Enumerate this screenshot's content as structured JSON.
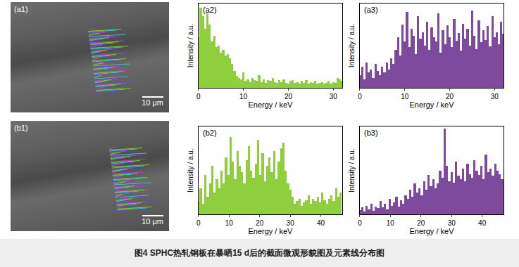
{
  "figure": {
    "caption": "图4   SPHC热轧钢板在暴晒15 d后的截面微观形貌图及元素线分布图",
    "images": [
      {
        "label": "(a1)",
        "scale_bar": "10 μm"
      },
      {
        "label": "(b1)",
        "scale_bar": "10 μm"
      }
    ]
  },
  "chart_data": [
    {
      "type": "bar",
      "title": "(a2)",
      "x_label": "Energy / keV",
      "y_label": "Intensity / a.u.",
      "color": "#8fce3c",
      "x": [
        0,
        0.5,
        1,
        1.5,
        2,
        2.5,
        3,
        3.5,
        4,
        4.5,
        5,
        5.5,
        6,
        6.5,
        7,
        7.5,
        8,
        8.5,
        9,
        9.5,
        10,
        10.5,
        11,
        11.5,
        12,
        12.5,
        13,
        13.5,
        14,
        14.5,
        15,
        15.5,
        16,
        16.5,
        17,
        17.5,
        18,
        18.5,
        19,
        19.5,
        20,
        20.5,
        21,
        21.5,
        22,
        22.5,
        23,
        23.5,
        24,
        24.5,
        25,
        25.5,
        26,
        26.5,
        27,
        27.5,
        28,
        28.5,
        29,
        29.5,
        30,
        30.5,
        31,
        31.5,
        32
      ],
      "values": [
        60,
        95,
        85,
        70,
        88,
        75,
        55,
        62,
        48,
        50,
        42,
        45,
        38,
        40,
        35,
        28,
        20,
        14,
        12,
        10,
        18,
        8,
        10,
        7,
        12,
        9,
        8,
        15,
        7,
        10,
        6,
        9,
        8,
        12,
        7,
        6,
        9,
        7,
        10,
        6,
        5,
        8,
        9,
        6,
        7,
        5,
        8,
        6,
        9,
        5,
        7,
        6,
        8,
        5,
        6,
        7,
        5,
        6,
        8,
        5,
        7,
        6,
        12,
        10,
        8
      ],
      "xlim": [
        0,
        32
      ],
      "xticks": [
        0,
        10,
        20,
        30
      ],
      "ylim": [
        0,
        100
      ],
      "tick_labels": "x"
    },
    {
      "type": "bar",
      "title": "(a3)",
      "x_label": "Energy / keV",
      "y_label": "Intensity / a.u.",
      "color": "#7e4a9e",
      "x": [
        0,
        0.5,
        1,
        1.5,
        2,
        2.5,
        3,
        3.5,
        4,
        4.5,
        5,
        5.5,
        6,
        6.5,
        7,
        7.5,
        8,
        8.5,
        9,
        9.5,
        10,
        10.5,
        11,
        11.5,
        12,
        12.5,
        13,
        13.5,
        14,
        14.5,
        15,
        15.5,
        16,
        16.5,
        17,
        17.5,
        18,
        18.5,
        19,
        19.5,
        20,
        20.5,
        21,
        21.5,
        22,
        22.5,
        23,
        23.5,
        24,
        24.5,
        25,
        25.5,
        26,
        26.5,
        27,
        27.5,
        28,
        28.5,
        29,
        29.5,
        30,
        30.5,
        31,
        31.5,
        32
      ],
      "values": [
        15,
        25,
        10,
        30,
        18,
        22,
        12,
        28,
        20,
        15,
        25,
        18,
        30,
        22,
        35,
        28,
        45,
        60,
        38,
        75,
        55,
        90,
        48,
        70,
        62,
        40,
        85,
        58,
        66,
        50,
        78,
        45,
        72,
        60,
        55,
        88,
        42,
        68,
        52,
        74,
        60,
        48,
        82,
        56,
        65,
        44,
        76,
        58,
        70,
        50,
        92,
        62,
        46,
        80,
        54,
        68,
        57,
        73,
        49,
        85,
        60,
        66,
        52,
        78,
        64
      ],
      "xlim": [
        0,
        32
      ],
      "xticks": [
        0,
        10,
        20,
        30
      ],
      "ylim": [
        0,
        100
      ],
      "tick_labels": "x"
    },
    {
      "type": "bar",
      "title": "(b2)",
      "x_label": "Energy / keV",
      "y_label": "Intensity / a.u.",
      "color": "#8fce3c",
      "x": [
        0,
        0.75,
        1.5,
        2.25,
        3,
        3.75,
        4.5,
        5.25,
        6,
        6.75,
        7.5,
        8.25,
        9,
        9.75,
        10.5,
        11.25,
        12,
        12.75,
        13.5,
        14.25,
        15,
        15.75,
        16.5,
        17.25,
        18,
        18.75,
        19.5,
        20.25,
        21,
        21.75,
        22.5,
        23.25,
        24,
        24.75,
        25.5,
        26.25,
        27,
        27.75,
        28.5,
        29.25,
        30,
        30.75,
        31.5,
        32.25,
        33,
        33.75,
        34.5,
        35.25,
        36,
        36.75,
        37.5,
        38.25,
        39,
        39.75,
        40.5,
        41.25,
        42,
        42.75,
        43.5,
        44.25,
        45,
        45.75,
        46.5
      ],
      "values": [
        15,
        30,
        12,
        45,
        20,
        35,
        55,
        25,
        40,
        30,
        50,
        35,
        65,
        45,
        88,
        60,
        40,
        72,
        55,
        48,
        35,
        62,
        78,
        50,
        42,
        58,
        85,
        45,
        70,
        38,
        55,
        65,
        48,
        72,
        40,
        60,
        75,
        82,
        50,
        35,
        28,
        20,
        12,
        15,
        18,
        10,
        14,
        16,
        22,
        12,
        18,
        15,
        20,
        14,
        25,
        16,
        12,
        18,
        22,
        15,
        30,
        20,
        25
      ],
      "xlim": [
        0,
        47
      ],
      "xticks": [
        0,
        10,
        20,
        30,
        40
      ],
      "ylim": [
        0,
        100
      ],
      "tick_labels": "x"
    },
    {
      "type": "bar",
      "title": "(b3)",
      "x_label": "Energy / keV",
      "y_label": "Intensity / a.u.",
      "color": "#7e4a9e",
      "x": [
        0,
        0.75,
        1.5,
        2.25,
        3,
        3.75,
        4.5,
        5.25,
        6,
        6.75,
        7.5,
        8.25,
        9,
        9.75,
        10.5,
        11.25,
        12,
        12.75,
        13.5,
        14.25,
        15,
        15.75,
        16.5,
        17.25,
        18,
        18.75,
        19.5,
        20.25,
        21,
        21.75,
        22.5,
        23.25,
        24,
        24.75,
        25.5,
        26.25,
        27,
        27.75,
        28.5,
        29.25,
        30,
        30.75,
        31.5,
        32.25,
        33,
        33.75,
        34.5,
        35.25,
        36,
        36.75,
        37.5,
        38.25,
        39,
        39.75,
        40.5,
        41.25,
        42,
        42.75,
        43.5,
        44.25,
        45,
        45.75,
        46.5
      ],
      "values": [
        5,
        8,
        3,
        10,
        6,
        12,
        4,
        9,
        7,
        15,
        8,
        12,
        6,
        18,
        10,
        14,
        20,
        9,
        16,
        12,
        22,
        18,
        28,
        20,
        35,
        25,
        30,
        22,
        38,
        28,
        45,
        32,
        40,
        30,
        35,
        50,
        42,
        98,
        55,
        38,
        48,
        36,
        60,
        44,
        40,
        52,
        38,
        58,
        46,
        42,
        62,
        50,
        45,
        55,
        40,
        68,
        48,
        52,
        44,
        58,
        50,
        46,
        40
      ],
      "xlim": [
        0,
        47
      ],
      "xticks": [
        0,
        10,
        20,
        30,
        40
      ],
      "ylim": [
        0,
        100
      ],
      "tick_labels": "x"
    }
  ]
}
